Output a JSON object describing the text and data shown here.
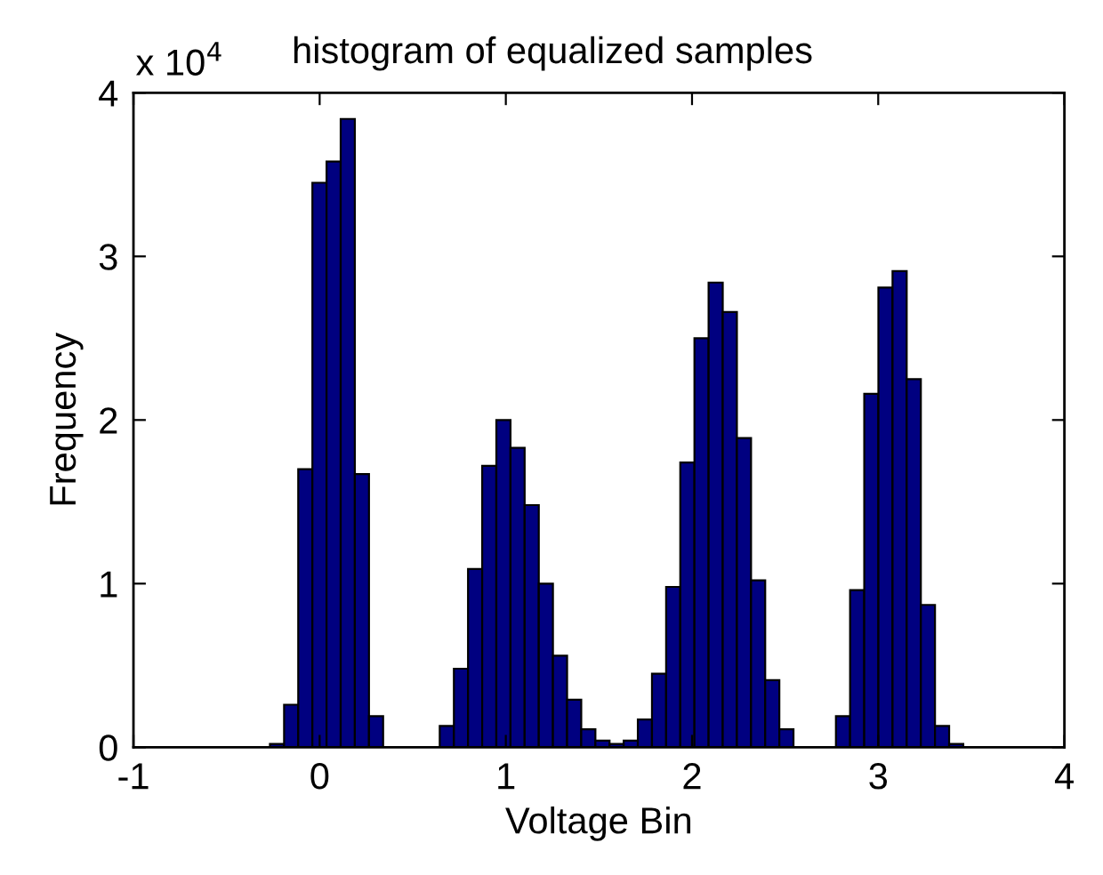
{
  "chart_data": {
    "type": "histogram",
    "title": "histogram of equalized samples",
    "xlabel": "Voltage Bin",
    "ylabel": "Frequency",
    "annotations": [
      "x 10$^{4}$"
    ],
    "bins": [
      -0.267,
      -0.191,
      -0.115,
      -0.039,
      0.037,
      0.113,
      0.189,
      0.265,
      0.341,
      0.417,
      0.493,
      0.569,
      0.645,
      0.721,
      0.797,
      0.873,
      0.949,
      1.025,
      1.101,
      1.177,
      1.253,
      1.329,
      1.405,
      1.481,
      1.557,
      1.633,
      1.709,
      1.785,
      1.861,
      1.937,
      2.013,
      2.089,
      2.165,
      2.241,
      2.317,
      2.393,
      2.469,
      2.545,
      2.621,
      2.697,
      2.773,
      2.849,
      2.925,
      3.001,
      3.077,
      3.153,
      3.229,
      3.305,
      3.381,
      3.457
    ],
    "values": [
      0.02,
      0.26,
      1.7,
      3.45,
      3.58,
      3.84,
      1.67,
      0.19,
      0,
      0,
      0,
      0,
      0.13,
      0.48,
      1.09,
      1.72,
      2.0,
      1.83,
      1.48,
      1.0,
      0.56,
      0.29,
      0.11,
      0.04,
      0.02,
      0.04,
      0.17,
      0.45,
      0.98,
      1.74,
      2.5,
      2.84,
      2.66,
      1.89,
      1.02,
      0.41,
      0.11,
      0,
      0,
      0,
      0.19,
      0.96,
      2.16,
      2.81,
      2.91,
      2.25,
      0.87,
      0.13,
      0.02
    ],
    "color": "#000080",
    "xlim": [
      -1,
      4
    ],
    "xticks": [
      -1,
      0,
      1,
      2,
      3,
      4
    ],
    "ylim": [
      0,
      4
    ],
    "yticks": [
      0,
      1,
      2,
      3,
      4
    ],
    "grid": false
  }
}
